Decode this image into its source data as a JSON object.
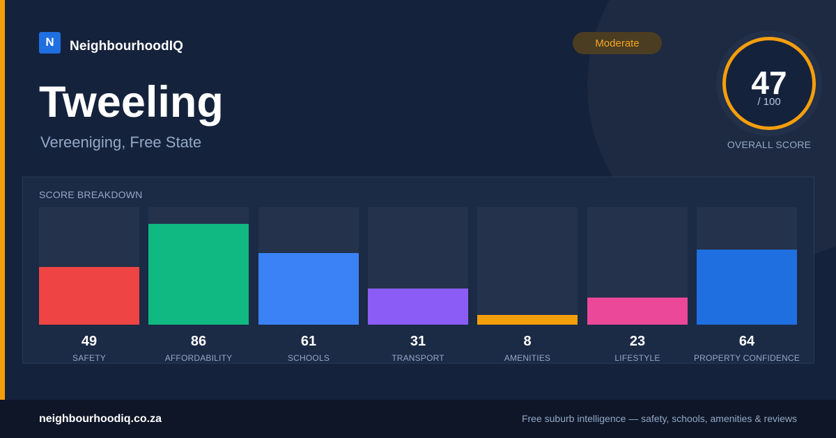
{
  "brand": {
    "logo_letter": "N",
    "name": "NeighbourhoodIQ",
    "accent_color": "#f59e0b",
    "logo_color": "#1f6fe0"
  },
  "suburb": {
    "name": "Tweeling",
    "location": "Vereeniging, Free State"
  },
  "rating": {
    "label": "Moderate"
  },
  "overall": {
    "score": "47",
    "max_label": "/ 100",
    "score_fraction": 0.47,
    "caption": "OVERALL SCORE"
  },
  "breakdown": {
    "heading": "SCORE BREAKDOWN",
    "max": 100,
    "items": [
      {
        "label": "SAFETY",
        "score": 49,
        "color": "#ef4444"
      },
      {
        "label": "AFFORDABILITY",
        "score": 86,
        "color": "#10b981"
      },
      {
        "label": "SCHOOLS",
        "score": 61,
        "color": "#3b82f6"
      },
      {
        "label": "TRANSPORT",
        "score": 31,
        "color": "#8b5cf6"
      },
      {
        "label": "AMENITIES",
        "score": 8,
        "color": "#f59e0b"
      },
      {
        "label": "LIFESTYLE",
        "score": 23,
        "color": "#ec4899"
      },
      {
        "label": "PROPERTY CONFIDENCE",
        "score": 64,
        "color": "#1f6fe0"
      }
    ]
  },
  "footer": {
    "domain": "neighbourhoodiq.co.za",
    "tagline": "Free suburb intelligence — safety, schools, amenities & reviews"
  }
}
